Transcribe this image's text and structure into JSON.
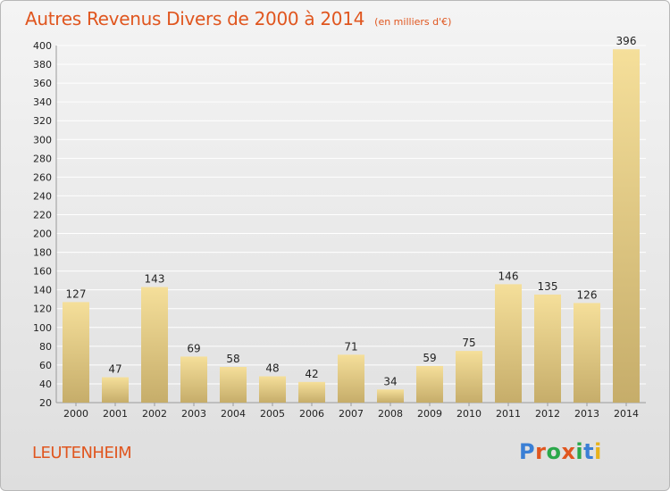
{
  "title": "Autres Revenus Divers de 2000 à 2014",
  "subtitle": "(en milliers d'€)",
  "commune": "LEUTENHEIM",
  "logo": {
    "text": "Proxiti",
    "letter_colors": [
      "#3a7fd5",
      "#e0561f",
      "#2aa84a",
      "#e0561f",
      "#2aa84a",
      "#3a7fd5",
      "#e8b21a"
    ]
  },
  "colors": {
    "bar_top": "#f5df9a",
    "bar_bottom": "#c6ad6a",
    "grid": "#ffffff",
    "axis_text": "#222222",
    "title": "#e0561f"
  },
  "chart_data": {
    "type": "bar",
    "title": "Autres Revenus Divers de 2000 à 2014",
    "subtitle": "(en milliers d'€)",
    "categories": [
      "2000",
      "2001",
      "2002",
      "2003",
      "2004",
      "2005",
      "2006",
      "2007",
      "2008",
      "2009",
      "2010",
      "2011",
      "2012",
      "2013",
      "2014"
    ],
    "values": [
      127,
      47,
      143,
      69,
      58,
      48,
      42,
      71,
      34,
      59,
      75,
      146,
      135,
      126,
      396
    ],
    "ylim": [
      20,
      400
    ],
    "yticks": [
      20,
      40,
      60,
      80,
      100,
      120,
      140,
      160,
      180,
      200,
      220,
      240,
      260,
      280,
      300,
      320,
      340,
      360,
      380,
      400
    ],
    "grid": true,
    "data_labels": true
  }
}
